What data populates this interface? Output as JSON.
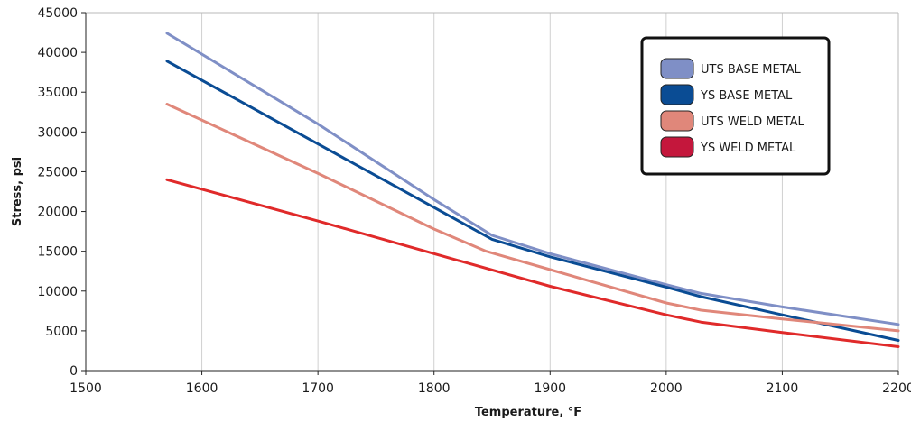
{
  "chart_data": {
    "type": "line",
    "title": "",
    "xlabel": "Temperature, °F",
    "ylabel": "Stress, psi",
    "xlim": [
      1500,
      2200
    ],
    "ylim": [
      0,
      45000
    ],
    "xticks": [
      1500,
      1600,
      1700,
      1800,
      1900,
      2000,
      2100,
      2200
    ],
    "yticks": [
      0,
      5000,
      10000,
      15000,
      20000,
      25000,
      30000,
      35000,
      40000,
      45000
    ],
    "grid": "vertical",
    "legend_position": "top-right",
    "series": [
      {
        "name": "UTS BASE METAL",
        "color": "#7f8fc6",
        "points": [
          [
            1570,
            42400
          ],
          [
            1700,
            31000
          ],
          [
            1800,
            21500
          ],
          [
            1850,
            17000
          ],
          [
            1900,
            14700
          ],
          [
            2000,
            10800
          ],
          [
            2030,
            9700
          ],
          [
            2100,
            8000
          ],
          [
            2200,
            5800
          ]
        ]
      },
      {
        "name": "YS BASE METAL",
        "color": "#0a4c94",
        "points": [
          [
            1570,
            38900
          ],
          [
            1700,
            28500
          ],
          [
            1800,
            20500
          ],
          [
            1850,
            16500
          ],
          [
            1900,
            14300
          ],
          [
            2000,
            10500
          ],
          [
            2030,
            9300
          ],
          [
            2100,
            7000
          ],
          [
            2200,
            3800
          ]
        ]
      },
      {
        "name": "UTS WELD METAL",
        "color": "#e0877a",
        "points": [
          [
            1570,
            33500
          ],
          [
            1700,
            24800
          ],
          [
            1800,
            17800
          ],
          [
            1845,
            15000
          ],
          [
            1900,
            12700
          ],
          [
            2000,
            8500
          ],
          [
            2030,
            7600
          ],
          [
            2100,
            6500
          ],
          [
            2200,
            5000
          ]
        ]
      },
      {
        "name": "YS WELD METAL",
        "color": "#e02a2a",
        "legend_color": "#c4173c",
        "points": [
          [
            1570,
            24000
          ],
          [
            1700,
            18800
          ],
          [
            1800,
            14700
          ],
          [
            1900,
            10600
          ],
          [
            2000,
            7000
          ],
          [
            2030,
            6100
          ],
          [
            2100,
            4800
          ],
          [
            2200,
            3000
          ]
        ]
      }
    ]
  }
}
